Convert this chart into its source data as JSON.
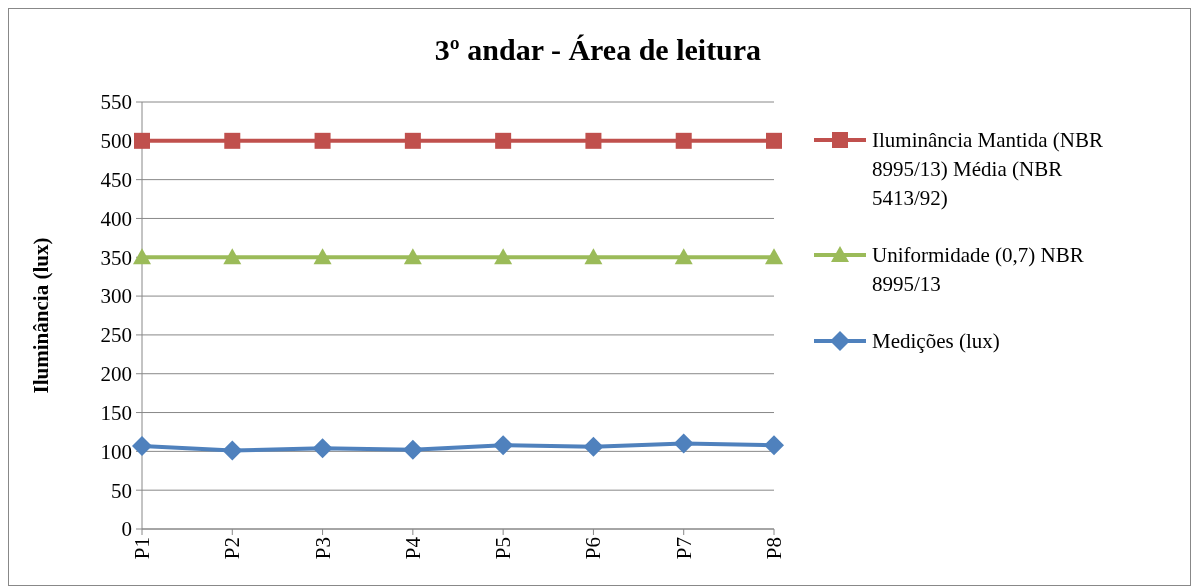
{
  "chart_data": {
    "type": "line",
    "title": "3º  andar - Área de leitura",
    "ylabel": "Iluminância (lux)",
    "categories": [
      "P1",
      "P2",
      "P3",
      "P4",
      "P5",
      "P6",
      "P7",
      "P8"
    ],
    "series": [
      {
        "name": "Iluminância Mantida (NBR 8995/13) Média (NBR 5413/92)",
        "color": "#c0504d",
        "marker": "square",
        "values": [
          500,
          500,
          500,
          500,
          500,
          500,
          500,
          500
        ]
      },
      {
        "name": "Uniformidade (0,7) NBR 8995/13",
        "color": "#9bbb59",
        "marker": "triangle",
        "values": [
          350,
          350,
          350,
          350,
          350,
          350,
          350,
          350
        ]
      },
      {
        "name": "Medições (lux)",
        "color": "#4f81bd",
        "marker": "diamond",
        "values": [
          107,
          101,
          104,
          102,
          108,
          106,
          110,
          108
        ]
      }
    ],
    "ylim": [
      0,
      550
    ],
    "yticks": [
      0,
      50,
      100,
      150,
      200,
      250,
      300,
      350,
      400,
      450,
      500,
      550
    ],
    "grid": "y",
    "legend": "right"
  }
}
